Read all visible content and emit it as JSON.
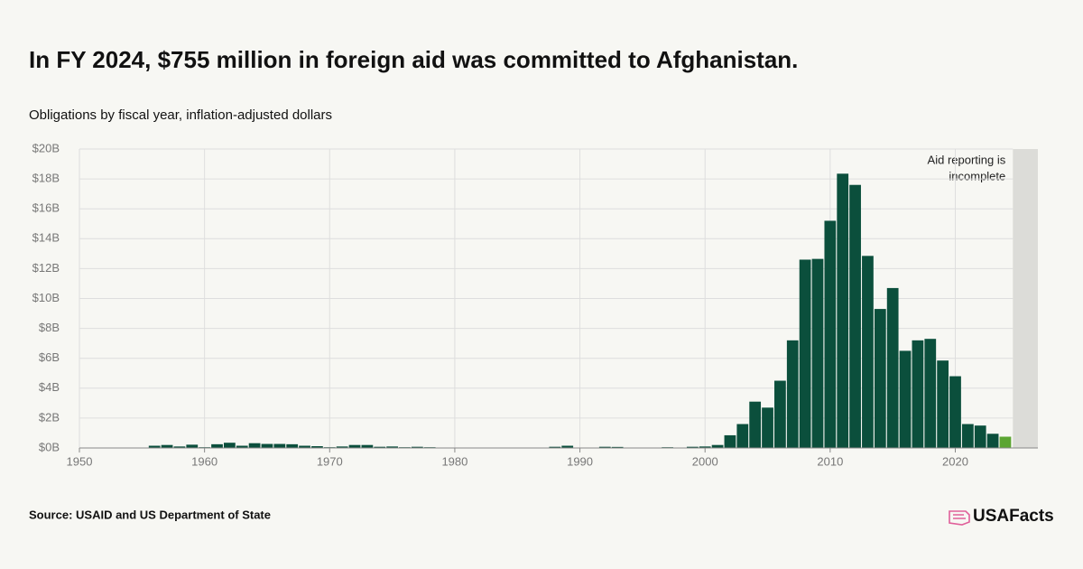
{
  "chart_data": {
    "type": "bar",
    "title": "In FY 2024, $755 million in foreign aid was committed to Afghanistan.",
    "subtitle": "Obligations by fiscal year, inflation-adjusted dollars",
    "source": "Source: USAID and US Department of State",
    "logo": "USAFacts",
    "x": [
      1956,
      1957,
      1958,
      1959,
      1960,
      1961,
      1962,
      1963,
      1964,
      1965,
      1966,
      1967,
      1968,
      1969,
      1970,
      1971,
      1972,
      1973,
      1974,
      1975,
      1976,
      1977,
      1978,
      1979,
      1980,
      1981,
      1982,
      1983,
      1984,
      1985,
      1986,
      1987,
      1988,
      1989,
      1990,
      1991,
      1992,
      1993,
      1994,
      1995,
      1996,
      1997,
      1998,
      1999,
      2000,
      2001,
      2002,
      2003,
      2004,
      2005,
      2006,
      2007,
      2008,
      2009,
      2010,
      2011,
      2012,
      2013,
      2014,
      2015,
      2016,
      2017,
      2018,
      2019,
      2020,
      2021,
      2022,
      2023,
      2024
    ],
    "values": [
      0.15,
      0.2,
      0.1,
      0.22,
      0.05,
      0.25,
      0.35,
      0.15,
      0.32,
      0.27,
      0.27,
      0.25,
      0.15,
      0.12,
      0.05,
      0.1,
      0.2,
      0.2,
      0.08,
      0.1,
      0.05,
      0.08,
      0.05,
      0.02,
      0.01,
      0.01,
      0.01,
      0.01,
      0.01,
      0.02,
      0.02,
      0.03,
      0.08,
      0.15,
      0.03,
      0.03,
      0.08,
      0.07,
      0.03,
      0.03,
      0.03,
      0.05,
      0.03,
      0.08,
      0.1,
      0.2,
      0.85,
      1.6,
      3.1,
      2.7,
      4.5,
      7.2,
      12.6,
      12.65,
      15.2,
      18.35,
      17.6,
      12.85,
      9.3,
      10.7,
      6.5,
      7.2,
      7.3,
      5.85,
      4.8,
      1.6,
      1.5,
      0.95,
      0.755
    ],
    "color": "#0b4f3c",
    "last_bar_color": "#5ba532",
    "xlim": [
      1950,
      2026.6
    ],
    "xticks": [
      1950,
      1960,
      1970,
      1980,
      1990,
      2000,
      2010,
      2020
    ],
    "ylim": [
      0,
      20
    ],
    "yticks": [
      {
        "value": 0,
        "label": "$0B"
      },
      {
        "value": 2,
        "label": "$2B"
      },
      {
        "value": 4,
        "label": "$4B"
      },
      {
        "value": 6,
        "label": "$6B"
      },
      {
        "value": 8,
        "label": "$8B"
      },
      {
        "value": 10,
        "label": "$10B"
      },
      {
        "value": 12,
        "label": "$12B"
      },
      {
        "value": 14,
        "label": "$14B"
      },
      {
        "value": 16,
        "label": "$16B"
      },
      {
        "value": 18,
        "label": "$18B"
      },
      {
        "value": 20,
        "label": "$20B"
      }
    ],
    "grid": true,
    "shade": {
      "xlim": [
        2024.6,
        2026.6
      ],
      "color": "#dcdcd8",
      "annotation": [
        "Aid reporting is",
        "incomplete"
      ]
    }
  }
}
